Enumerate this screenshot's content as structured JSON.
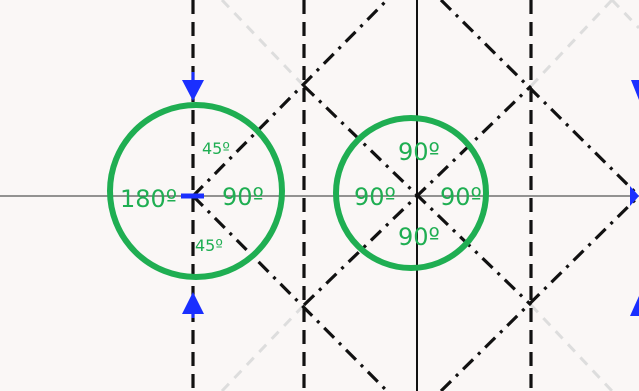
{
  "colors": {
    "background": "#faf7f6",
    "fold_lines": "#111111",
    "faint_lines": "#dddddd",
    "axis_lines": "#555555",
    "circles": "#1fae52",
    "labels": "#1fae52",
    "arrows": "#1a2fff"
  },
  "left_vertex": {
    "labels": {
      "top_small": "45º",
      "left": "180º",
      "right": "90º",
      "bottom_small": "45º"
    }
  },
  "center_vertex": {
    "labels": {
      "top": "90º",
      "left": "90º",
      "right": "90º",
      "bottom": "90º"
    }
  },
  "arrows": [
    {
      "name": "arrow-top-left",
      "direction": "down"
    },
    {
      "name": "arrow-bottom-left",
      "direction": "up"
    },
    {
      "name": "arrow-top-right",
      "direction": "down"
    },
    {
      "name": "arrow-mid-right",
      "direction": "right"
    },
    {
      "name": "arrow-bottom-right",
      "direction": "up"
    }
  ]
}
